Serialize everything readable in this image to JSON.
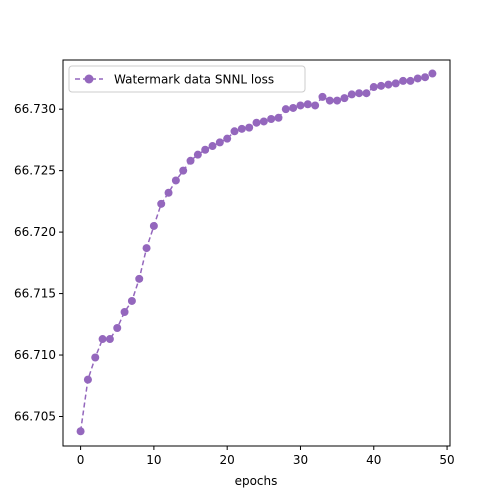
{
  "chart_data": {
    "type": "line",
    "title": "",
    "xlabel": "epochs",
    "ylabel": "",
    "xlim": [
      -2.4,
      50.4
    ],
    "ylim": [
      66.7026,
      66.734
    ],
    "xticks": [
      0,
      10,
      20,
      30,
      40,
      50
    ],
    "yticks": [
      66.705,
      66.71,
      66.715,
      66.72,
      66.725,
      66.73
    ],
    "ytick_labels": [
      "66.705",
      "66.710",
      "66.715",
      "66.720",
      "66.725",
      "66.730"
    ],
    "grid": false,
    "legend": {
      "placement": "top-left"
    },
    "series": [
      {
        "name": "Watermark data SNNL loss",
        "color": "#9467bd",
        "linestyle": "dashed",
        "marker": "circle",
        "x": [
          0,
          1,
          2,
          3,
          4,
          5,
          6,
          7,
          8,
          9,
          10,
          11,
          12,
          13,
          14,
          15,
          16,
          17,
          18,
          19,
          20,
          21,
          22,
          23,
          24,
          25,
          26,
          27,
          28,
          29,
          30,
          31,
          32,
          33,
          34,
          35,
          36,
          37,
          38,
          39,
          40,
          41,
          42,
          43,
          44,
          45,
          46,
          47,
          48
        ],
        "y": [
          66.7038,
          66.708,
          66.7098,
          66.7113,
          66.7113,
          66.7122,
          66.7135,
          66.7144,
          66.7162,
          66.7187,
          66.7205,
          66.7223,
          66.7232,
          66.7242,
          66.725,
          66.7258,
          66.7263,
          66.7267,
          66.727,
          66.7273,
          66.7276,
          66.7282,
          66.7284,
          66.7285,
          66.7289,
          66.729,
          66.7292,
          66.7293,
          66.73,
          66.7301,
          66.7303,
          66.7304,
          66.7303,
          66.731,
          66.7307,
          66.7307,
          66.7309,
          66.7312,
          66.7313,
          66.7313,
          66.7318,
          66.7319,
          66.732,
          66.7321,
          66.7323,
          66.7323,
          66.7325,
          66.7326,
          66.7329
        ]
      }
    ]
  }
}
